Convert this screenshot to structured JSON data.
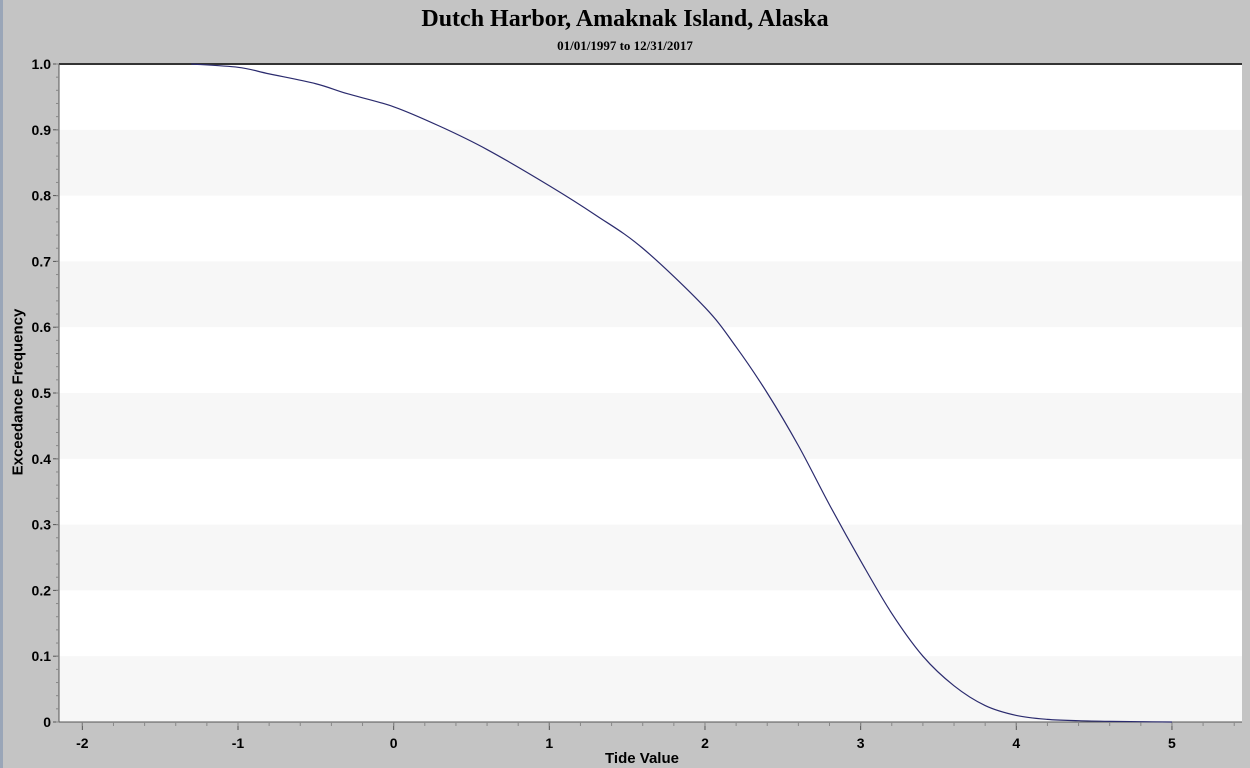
{
  "chart_data": {
    "type": "line",
    "title": "Dutch Harbor, Amaknak Island, Alaska",
    "subtitle": "01/01/1997 to 12/31/2017",
    "xlabel": "Tide Value",
    "ylabel": "Exceedance Frequency",
    "xlim": [
      -2.15,
      5.45
    ],
    "ylim": [
      0,
      1.0
    ],
    "x_ticks": [
      -2,
      -1,
      0,
      1,
      2,
      3,
      4,
      5
    ],
    "y_ticks": [
      0,
      0.1,
      0.2,
      0.3,
      0.4,
      0.5,
      0.6,
      0.7,
      0.8,
      0.9,
      1.0
    ],
    "y_tick_labels": [
      "0",
      "0.1",
      "0.2",
      "0.3",
      "0.4",
      "0.5",
      "0.6",
      "0.7",
      "0.8",
      "0.9",
      "1.0"
    ],
    "grid": "alternating horizontal bands",
    "legend": "none",
    "series": [
      {
        "color": "#2b2b6e",
        "x": [
          -1.3,
          -1.0,
          -0.8,
          -0.5,
          -0.3,
          0.0,
          0.3,
          0.6,
          1.0,
          1.3,
          1.6,
          2.0,
          2.2,
          2.4,
          2.6,
          2.8,
          3.0,
          3.2,
          3.4,
          3.6,
          3.8,
          4.0,
          4.2,
          4.4,
          4.6,
          4.8,
          5.0
        ],
        "values": [
          1.0,
          0.995,
          0.985,
          0.97,
          0.955,
          0.935,
          0.905,
          0.87,
          0.815,
          0.77,
          0.72,
          0.63,
          0.57,
          0.5,
          0.42,
          0.33,
          0.245,
          0.165,
          0.1,
          0.055,
          0.025,
          0.01,
          0.004,
          0.002,
          0.001,
          0.0005,
          0.0
        ]
      }
    ]
  },
  "colors": {
    "frame": "#c4c4c4",
    "plot_background": "#ffffff",
    "band": "#f7f7f7",
    "line": "#2b2b6e"
  }
}
